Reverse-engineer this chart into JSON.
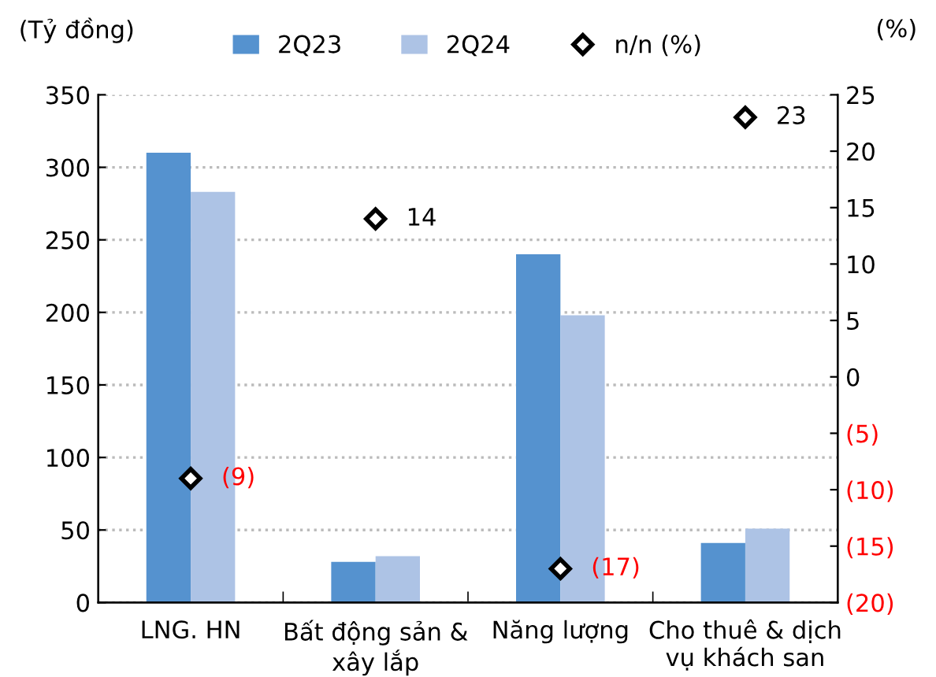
{
  "chart_data": {
    "type": "bar",
    "ylabel": "(Tỷ đồng)",
    "y2label": "(%)",
    "categories": [
      "LNG. HN",
      "Bất động sản &\nxây lắp",
      "Năng lượng",
      "Cho thuê & dịch\nvụ khách san"
    ],
    "series": [
      {
        "name": "2Q23",
        "color": "#5592cf",
        "values": [
          310,
          28,
          240,
          41
        ]
      },
      {
        "name": "2Q24",
        "color": "#adc3e5",
        "values": [
          283,
          32,
          198,
          51
        ]
      },
      {
        "name": "n/n (%)",
        "type": "scatter",
        "axis": "y2",
        "color": "#000000",
        "marker": "diamond",
        "values": [
          -9,
          14,
          -17,
          23
        ],
        "value_labels": [
          "(9)",
          "14",
          "(17)",
          "23"
        ]
      }
    ],
    "ylim": [
      0,
      350
    ],
    "yticks": [
      0,
      50,
      100,
      150,
      200,
      250,
      300,
      350
    ],
    "y2lim": [
      -20,
      25
    ],
    "y2ticks": [
      {
        "value": -20,
        "label": "(20)"
      },
      {
        "value": -15,
        "label": "(15)"
      },
      {
        "value": -10,
        "label": "(10)"
      },
      {
        "value": -5,
        "label": "(5)"
      },
      0,
      5,
      10,
      15,
      20,
      25
    ],
    "grid": "y",
    "legend": "top"
  }
}
